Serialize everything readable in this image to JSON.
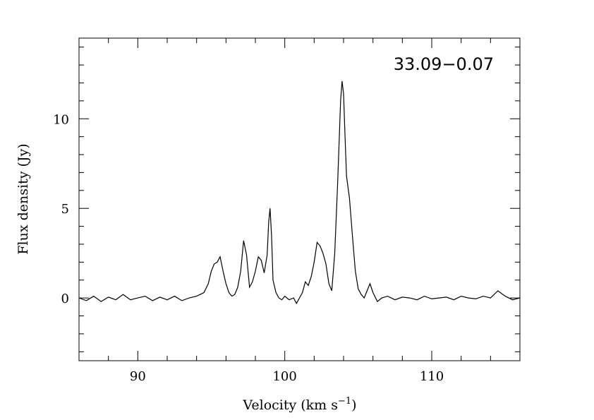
{
  "chart_data": {
    "type": "line",
    "title": "",
    "annotation": "33.09−0.07",
    "xlabel": "Velocity (km s",
    "xlabel_sup": "−1",
    "xlabel_close": ")",
    "ylabel": "Flux density (Jy)",
    "xlim": [
      86,
      116
    ],
    "ylim": [
      -3.5,
      14.5
    ],
    "x_ticks": [
      90,
      100,
      110
    ],
    "x_tick_labels": [
      "90",
      "100",
      "110"
    ],
    "y_ticks": [
      0,
      5,
      10
    ],
    "y_tick_labels": [
      "0",
      "5",
      "10"
    ],
    "x_minor_step": 2,
    "y_minor_step": 1,
    "grid": false,
    "series": [
      {
        "x": [
          86.0,
          86.5,
          87.0,
          87.5,
          88.0,
          88.5,
          89.0,
          89.5,
          90.0,
          90.5,
          91.0,
          91.5,
          92.0,
          92.5,
          93.0,
          93.5,
          94.0,
          94.5,
          94.8,
          95.0,
          95.2,
          95.4,
          95.6,
          95.8,
          96.0,
          96.2,
          96.4,
          96.6,
          96.8,
          97.0,
          97.2,
          97.4,
          97.6,
          97.8,
          98.0,
          98.2,
          98.4,
          98.6,
          98.8,
          98.9,
          99.0,
          99.1,
          99.2,
          99.4,
          99.6,
          99.8,
          100.0,
          100.3,
          100.6,
          100.8,
          101.0,
          101.2,
          101.4,
          101.6,
          101.8,
          102.0,
          102.2,
          102.4,
          102.6,
          102.8,
          103.0,
          103.2,
          103.4,
          103.6,
          103.8,
          103.9,
          104.0,
          104.1,
          104.2,
          104.3,
          104.4,
          104.6,
          104.8,
          105.0,
          105.2,
          105.4,
          105.6,
          105.8,
          106.0,
          106.3,
          106.6,
          107.0,
          107.5,
          108.0,
          108.5,
          109.0,
          109.5,
          110.0,
          110.5,
          111.0,
          111.5,
          112.0,
          112.5,
          113.0,
          113.5,
          114.0,
          114.5,
          115.0,
          115.5,
          116.0
        ],
        "y": [
          0.0,
          -0.15,
          0.1,
          -0.2,
          0.05,
          -0.1,
          0.2,
          -0.1,
          0.0,
          0.1,
          -0.15,
          0.05,
          -0.1,
          0.1,
          -0.15,
          0.0,
          0.1,
          0.3,
          0.8,
          1.5,
          1.9,
          2.0,
          2.3,
          1.5,
          0.8,
          0.3,
          0.1,
          0.2,
          0.6,
          1.5,
          3.2,
          2.4,
          0.6,
          0.9,
          1.5,
          2.3,
          2.1,
          1.4,
          2.4,
          4.2,
          5.0,
          3.5,
          1.0,
          0.3,
          0.0,
          -0.1,
          0.1,
          -0.1,
          0.0,
          -0.3,
          0.0,
          0.3,
          0.9,
          0.7,
          1.2,
          2.0,
          3.1,
          2.9,
          2.5,
          1.9,
          0.8,
          0.4,
          2.5,
          6.5,
          11.0,
          12.1,
          11.4,
          9.0,
          6.8,
          6.2,
          5.6,
          3.5,
          1.5,
          0.5,
          0.2,
          0.0,
          0.4,
          0.8,
          0.3,
          -0.2,
          0.0,
          0.1,
          -0.1,
          0.05,
          0.0,
          -0.1,
          0.1,
          -0.05,
          0.0,
          0.05,
          -0.1,
          0.1,
          0.0,
          -0.05,
          0.1,
          0.0,
          0.4,
          0.1,
          -0.1,
          0.0
        ]
      }
    ]
  }
}
